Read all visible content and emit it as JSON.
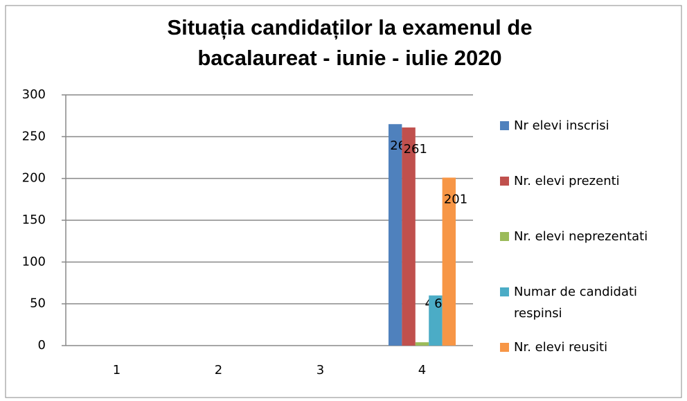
{
  "chart_data": {
    "type": "bar",
    "title": "Situația candidaților la examenul de bacalaureat - iunie - iulie 2020",
    "categories": [
      "1",
      "2",
      "3",
      "4"
    ],
    "series": [
      {
        "name": "Nr elevi inscrisi",
        "color": "#4f81bd",
        "values": [
          null,
          null,
          null,
          265
        ]
      },
      {
        "name": "Nr. elevi prezenti",
        "color": "#c0504d",
        "values": [
          null,
          null,
          null,
          261
        ]
      },
      {
        "name": "Nr. elevi neprezentati",
        "color": "#9bbb59",
        "values": [
          null,
          null,
          null,
          4
        ]
      },
      {
        "name": "Numar de candidati respinsi",
        "color": "#4bacc6",
        "values": [
          null,
          null,
          null,
          60
        ]
      },
      {
        "name": "Nr. elevi reusiti",
        "color": "#f79646",
        "values": [
          null,
          null,
          null,
          201
        ]
      }
    ],
    "ylim": [
      0,
      300
    ],
    "yticks": [
      0,
      50,
      100,
      150,
      200,
      250,
      300
    ],
    "grid": true,
    "legend": "right"
  }
}
